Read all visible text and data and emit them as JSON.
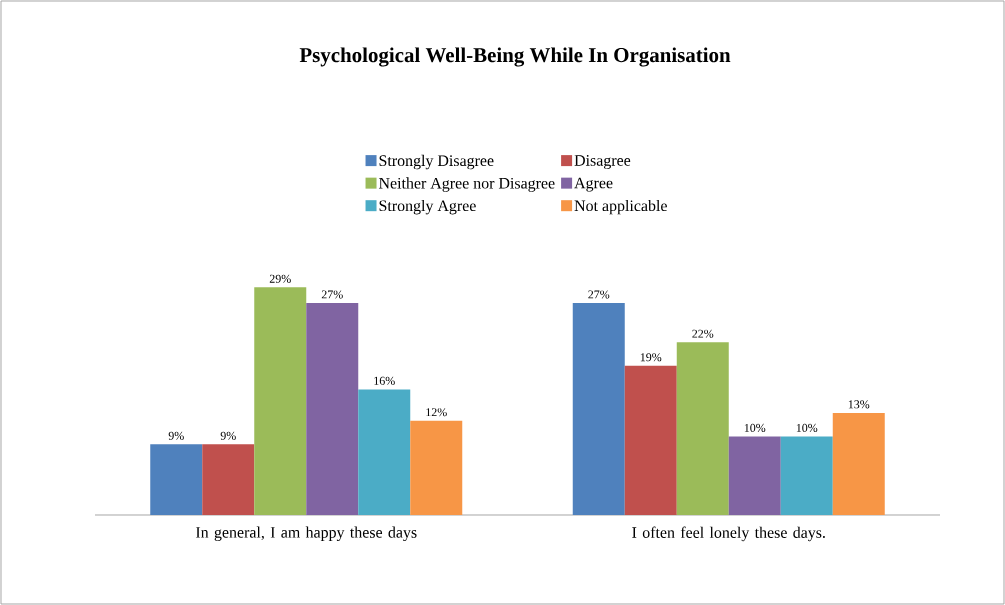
{
  "chart_data": {
    "type": "bar",
    "title": "Psychological Well-Being While In Organisation",
    "categories": [
      "In general, I am happy these days",
      "I often feel lonely these days."
    ],
    "legend": "top",
    "series": [
      {
        "name": "Strongly Disagree",
        "color": "#4f81bd",
        "values": [
          9,
          27
        ],
        "value_labels": [
          "9%",
          "27%"
        ]
      },
      {
        "name": "Disagree",
        "color": "#c0504d",
        "values": [
          9,
          19
        ],
        "value_labels": [
          "9%",
          "19%"
        ]
      },
      {
        "name": "Neither Agree nor Disagree",
        "color": "#9bbb59",
        "values": [
          29,
          22
        ],
        "value_labels": [
          "29%",
          "22%"
        ]
      },
      {
        "name": "Agree",
        "color": "#8064a2",
        "values": [
          27,
          10
        ],
        "value_labels": [
          "27%",
          "10%"
        ]
      },
      {
        "name": "Strongly Agree",
        "color": "#4bacc6",
        "values": [
          16,
          10
        ],
        "value_labels": [
          "16%",
          "10%"
        ]
      },
      {
        "name": "Not applicable",
        "color": "#f79646",
        "values": [
          12,
          13
        ],
        "value_labels": [
          "12%",
          "13%"
        ]
      }
    ]
  }
}
